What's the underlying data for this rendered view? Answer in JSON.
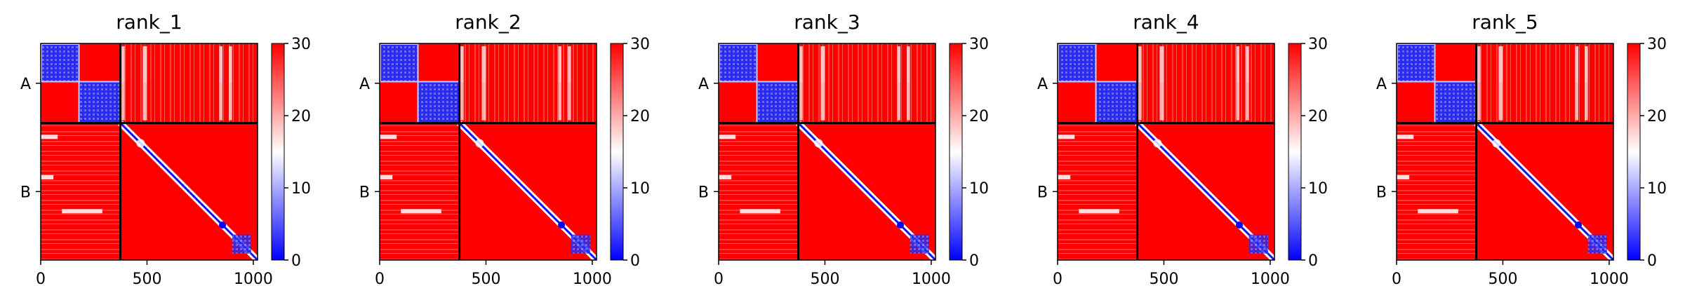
{
  "chart_data": [
    {
      "type": "heatmap",
      "title": "rank_1",
      "x_ticks": [
        0,
        500,
        1000
      ],
      "y_tick_labels": [
        "A",
        "B"
      ],
      "xlim": [
        0,
        1020
      ],
      "chain_boundary": 375,
      "colorbar": {
        "min": 0,
        "max": 30,
        "ticks": [
          0,
          10,
          20,
          30
        ],
        "colors": [
          "#0000ff",
          "#ffffff",
          "#ff0000"
        ]
      }
    },
    {
      "type": "heatmap",
      "title": "rank_2",
      "x_ticks": [
        0,
        500,
        1000
      ],
      "y_tick_labels": [
        "A",
        "B"
      ],
      "xlim": [
        0,
        1020
      ],
      "chain_boundary": 375,
      "colorbar": {
        "min": 0,
        "max": 30,
        "ticks": [
          0,
          10,
          20,
          30
        ],
        "colors": [
          "#0000ff",
          "#ffffff",
          "#ff0000"
        ]
      }
    },
    {
      "type": "heatmap",
      "title": "rank_3",
      "x_ticks": [
        0,
        500,
        1000
      ],
      "y_tick_labels": [
        "A",
        "B"
      ],
      "xlim": [
        0,
        1020
      ],
      "chain_boundary": 375,
      "colorbar": {
        "min": 0,
        "max": 30,
        "ticks": [
          0,
          10,
          20,
          30
        ],
        "colors": [
          "#0000ff",
          "#ffffff",
          "#ff0000"
        ]
      }
    },
    {
      "type": "heatmap",
      "title": "rank_4",
      "x_ticks": [
        0,
        500,
        1000
      ],
      "y_tick_labels": [
        "A",
        "B"
      ],
      "xlim": [
        0,
        1020
      ],
      "chain_boundary": 375,
      "colorbar": {
        "min": 0,
        "max": 30,
        "ticks": [
          0,
          10,
          20,
          30
        ],
        "colors": [
          "#0000ff",
          "#ffffff",
          "#ff0000"
        ]
      }
    },
    {
      "type": "heatmap",
      "title": "rank_5",
      "x_ticks": [
        0,
        500,
        1000
      ],
      "y_tick_labels": [
        "A",
        "B"
      ],
      "xlim": [
        0,
        1020
      ],
      "chain_boundary": 375,
      "colorbar": {
        "min": 0,
        "max": 30,
        "ticks": [
          0,
          10,
          20,
          30
        ],
        "colors": [
          "#0000ff",
          "#ffffff",
          "#ff0000"
        ]
      }
    }
  ]
}
